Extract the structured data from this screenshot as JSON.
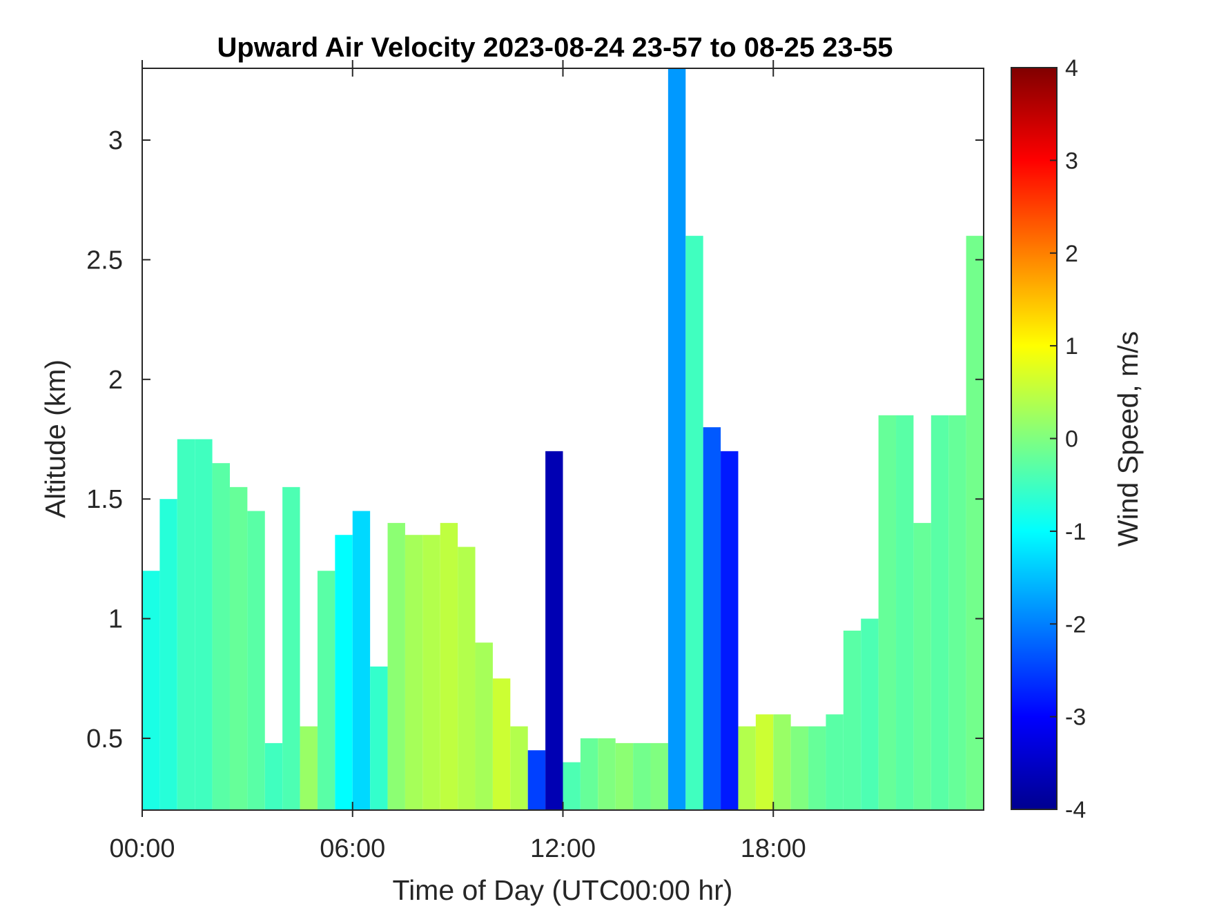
{
  "chart_data": {
    "type": "heatmap",
    "title": "Upward Air Velocity 2023-08-24 23-57 to 08-25 23-55",
    "xlabel": "Time of Day (UTC00:00 hr)",
    "ylabel": "Altitude (km)",
    "colorbar_label": "Wind Speed, m/s",
    "x_unit": "hours (UTC)",
    "xlim": [
      0,
      24
    ],
    "ylim": [
      0.2,
      3.3
    ],
    "x_ticks": [
      0,
      6,
      12,
      18
    ],
    "x_tick_labels": [
      "00:00",
      "06:00",
      "12:00",
      "18:00"
    ],
    "y_ticks": [
      0.5,
      1,
      1.5,
      2,
      2.5,
      3
    ],
    "y_tick_labels": [
      "0.5",
      "1",
      "1.5",
      "2",
      "2.5",
      "3"
    ],
    "clim": [
      -4,
      4
    ],
    "colorbar_ticks": [
      4,
      3,
      2,
      1,
      0,
      -1,
      -2,
      -3,
      -4
    ],
    "colorbar_tick_labels": [
      "4",
      "3",
      "2",
      "1",
      "0",
      "-1",
      "-2",
      "-3",
      "-4"
    ],
    "colormap": "jet",
    "grid": false,
    "columns": [
      {
        "t": 0.0,
        "top": 1.2,
        "w": -0.8
      },
      {
        "t": 0.5,
        "top": 1.5,
        "w": -0.7
      },
      {
        "t": 1.0,
        "top": 1.75,
        "w": -0.5
      },
      {
        "t": 1.5,
        "top": 1.75,
        "w": -0.5
      },
      {
        "t": 2.0,
        "top": 1.65,
        "w": -0.3
      },
      {
        "t": 2.5,
        "top": 1.55,
        "w": -0.2
      },
      {
        "t": 3.0,
        "top": 1.45,
        "w": -0.3
      },
      {
        "t": 3.5,
        "top": 0.48,
        "w": -0.5
      },
      {
        "t": 4.0,
        "top": 1.55,
        "w": -0.4
      },
      {
        "t": 4.5,
        "top": 0.55,
        "w": 0.2
      },
      {
        "t": 5.0,
        "top": 1.2,
        "w": -0.3
      },
      {
        "t": 5.5,
        "top": 1.35,
        "w": -1.0
      },
      {
        "t": 6.0,
        "top": 1.45,
        "w": -1.3
      },
      {
        "t": 6.5,
        "top": 0.8,
        "w": -0.6
      },
      {
        "t": 7.0,
        "top": 1.4,
        "w": 0.1
      },
      {
        "t": 7.5,
        "top": 1.35,
        "w": 0.3
      },
      {
        "t": 8.0,
        "top": 1.35,
        "w": 0.4
      },
      {
        "t": 8.5,
        "top": 1.4,
        "w": 0.5
      },
      {
        "t": 9.0,
        "top": 1.3,
        "w": 0.4
      },
      {
        "t": 9.5,
        "top": 0.9,
        "w": 0.3
      },
      {
        "t": 10.0,
        "top": 0.75,
        "w": 0.6
      },
      {
        "t": 10.5,
        "top": 0.55,
        "w": 0.4
      },
      {
        "t": 11.0,
        "top": 0.45,
        "w": -2.5
      },
      {
        "t": 11.5,
        "top": 1.7,
        "w": -3.6
      },
      {
        "t": 12.0,
        "top": 0.4,
        "w": -0.4
      },
      {
        "t": 12.5,
        "top": 0.5,
        "w": -0.2
      },
      {
        "t": 13.0,
        "top": 0.5,
        "w": 0.0
      },
      {
        "t": 13.5,
        "top": 0.48,
        "w": 0.1
      },
      {
        "t": 14.0,
        "top": 0.48,
        "w": -0.1
      },
      {
        "t": 14.5,
        "top": 0.48,
        "w": 0.0
      },
      {
        "t": 15.0,
        "top": 3.3,
        "w": -1.8
      },
      {
        "t": 15.5,
        "top": 2.6,
        "w": -0.5
      },
      {
        "t": 16.0,
        "top": 1.8,
        "w": -2.3
      },
      {
        "t": 16.5,
        "top": 1.7,
        "w": -2.8
      },
      {
        "t": 17.0,
        "top": 0.55,
        "w": 0.4
      },
      {
        "t": 17.5,
        "top": 0.6,
        "w": 0.6
      },
      {
        "t": 18.0,
        "top": 0.6,
        "w": 0.2
      },
      {
        "t": 18.5,
        "top": 0.55,
        "w": 0.0
      },
      {
        "t": 19.0,
        "top": 0.55,
        "w": -0.2
      },
      {
        "t": 19.5,
        "top": 0.6,
        "w": -0.3
      },
      {
        "t": 20.0,
        "top": 0.95,
        "w": -0.3
      },
      {
        "t": 20.5,
        "top": 1.0,
        "w": -0.4
      },
      {
        "t": 21.0,
        "top": 1.85,
        "w": -0.2
      },
      {
        "t": 21.5,
        "top": 1.85,
        "w": -0.3
      },
      {
        "t": 22.0,
        "top": 1.4,
        "w": -0.2
      },
      {
        "t": 22.5,
        "top": 1.85,
        "w": -0.3
      },
      {
        "t": 23.0,
        "top": 1.85,
        "w": -0.2
      },
      {
        "t": 23.5,
        "top": 2.6,
        "w": -0.1
      }
    ]
  }
}
